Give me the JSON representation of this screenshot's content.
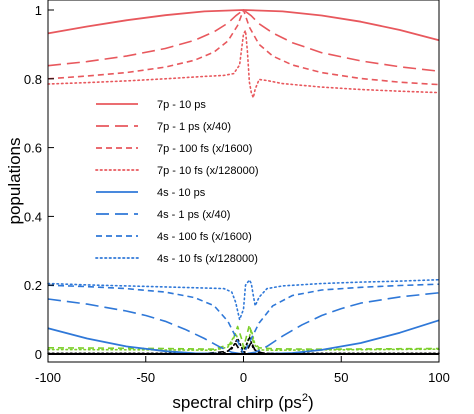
{
  "chart_data": {
    "type": "line",
    "title": "",
    "xlabel": "spectral chirp (ps",
    "xlabel_sup": "2",
    "xlabel_close": ")",
    "ylabel": "populations",
    "xlim": [
      -100,
      100
    ],
    "ylim": [
      0,
      1
    ],
    "xticks": [
      -100,
      -50,
      0,
      50,
      100
    ],
    "xtick_labels": [
      "-100",
      "-50",
      "0",
      "50",
      "100"
    ],
    "yticks": [
      0,
      0.2,
      0.4,
      0.6,
      0.8,
      1
    ],
    "ytick_labels": [
      "0",
      "0.2",
      "0.4",
      "0.6",
      "0.8",
      "1"
    ],
    "grid": false,
    "legend_position": "left",
    "colors": {
      "red": "#e8585d",
      "blue": "#2f78d8",
      "green": "#7ccf2a",
      "black": "#000000"
    },
    "series": [
      {
        "name": "7p - 10 ps",
        "color": "#e8585d",
        "style": "solid",
        "x": [
          -100,
          -80,
          -60,
          -40,
          -20,
          0,
          20,
          40,
          60,
          80,
          100
        ],
        "values": [
          0.932,
          0.952,
          0.97,
          0.985,
          0.996,
          1.0,
          0.996,
          0.984,
          0.966,
          0.942,
          0.912
        ]
      },
      {
        "name": "7p - 1 ps (x/40)",
        "color": "#e8585d",
        "style": "longdash",
        "x": [
          -100,
          -80,
          -60,
          -40,
          -25,
          -15,
          -8,
          -4,
          0,
          4,
          8,
          15,
          25,
          40,
          60,
          80,
          100
        ],
        "values": [
          0.838,
          0.85,
          0.866,
          0.888,
          0.912,
          0.937,
          0.962,
          0.983,
          1.0,
          0.983,
          0.96,
          0.933,
          0.905,
          0.876,
          0.852,
          0.835,
          0.822
        ]
      },
      {
        "name": "7p - 100 fs (x/1600)",
        "color": "#e8585d",
        "style": "dash",
        "x": [
          -100,
          -80,
          -60,
          -40,
          -25,
          -15,
          -8,
          -3,
          0,
          3,
          8,
          15,
          25,
          40,
          60,
          80,
          100
        ],
        "values": [
          0.8,
          0.808,
          0.818,
          0.834,
          0.854,
          0.878,
          0.91,
          0.955,
          1.0,
          0.95,
          0.9,
          0.866,
          0.84,
          0.818,
          0.801,
          0.79,
          0.783
        ]
      },
      {
        "name": "7p - 10 fs (x/128000)",
        "color": "#e8585d",
        "style": "dot",
        "x": [
          -100,
          -80,
          -60,
          -40,
          -20,
          -10,
          -5,
          -2,
          0,
          1,
          2,
          3,
          4,
          5,
          6,
          8,
          12,
          20,
          40,
          60,
          80,
          100
        ],
        "values": [
          0.785,
          0.789,
          0.794,
          0.8,
          0.807,
          0.81,
          0.815,
          0.84,
          0.93,
          0.94,
          0.88,
          0.79,
          0.76,
          0.745,
          0.77,
          0.798,
          0.795,
          0.786,
          0.776,
          0.769,
          0.764,
          0.76
        ]
      },
      {
        "name": "4s - 10 ps",
        "color": "#2f78d8",
        "style": "solid",
        "x": [
          -100,
          -80,
          -60,
          -40,
          -25,
          -15,
          -8,
          0,
          8,
          15,
          25,
          40,
          60,
          80,
          100
        ],
        "values": [
          0.075,
          0.045,
          0.022,
          0.008,
          0.002,
          0.001,
          0.0,
          0.0,
          0.0,
          0.001,
          0.003,
          0.012,
          0.032,
          0.062,
          0.098
        ]
      },
      {
        "name": "4s - 1 ps (x/40)",
        "color": "#2f78d8",
        "style": "longdash",
        "x": [
          -100,
          -80,
          -60,
          -50,
          -40,
          -30,
          -20,
          -12,
          -6,
          0,
          6,
          12,
          20,
          30,
          40,
          50,
          60,
          80,
          100
        ],
        "values": [
          0.16,
          0.145,
          0.125,
          0.112,
          0.095,
          0.072,
          0.045,
          0.02,
          0.005,
          0.0,
          0.005,
          0.022,
          0.052,
          0.085,
          0.112,
          0.132,
          0.148,
          0.166,
          0.178
        ]
      },
      {
        "name": "4s - 100 fs (x/1600)",
        "color": "#2f78d8",
        "style": "dash",
        "x": [
          -100,
          -80,
          -60,
          -40,
          -25,
          -15,
          -8,
          -4,
          0,
          4,
          8,
          15,
          25,
          40,
          60,
          80,
          100
        ],
        "values": [
          0.2,
          0.196,
          0.19,
          0.18,
          0.164,
          0.14,
          0.095,
          0.05,
          0.0,
          0.045,
          0.09,
          0.14,
          0.17,
          0.186,
          0.194,
          0.199,
          0.203
        ]
      },
      {
        "name": "4s - 10 fs (x/128000)",
        "color": "#2f78d8",
        "style": "dot",
        "x": [
          -100,
          -80,
          -60,
          -40,
          -20,
          -10,
          -6,
          -4,
          -2,
          0,
          1,
          3,
          4,
          5,
          6,
          8,
          12,
          20,
          40,
          60,
          80,
          100
        ],
        "values": [
          0.205,
          0.201,
          0.198,
          0.195,
          0.192,
          0.19,
          0.18,
          0.15,
          0.1,
          0.13,
          0.2,
          0.215,
          0.205,
          0.17,
          0.14,
          0.165,
          0.19,
          0.198,
          0.205,
          0.209,
          0.212,
          0.216
        ]
      }
    ],
    "unlabeled_series": [
      {
        "color": "#7ccf2a",
        "style": "dash",
        "x": [
          -100,
          -40,
          -15,
          -6,
          -3,
          -1,
          0,
          1,
          3,
          5,
          8,
          15,
          40,
          100
        ],
        "values": [
          0.018,
          0.016,
          0.014,
          0.03,
          0.08,
          0.045,
          0.02,
          0.04,
          0.085,
          0.035,
          0.018,
          0.015,
          0.014,
          0.016
        ]
      },
      {
        "color": "#7ccf2a",
        "style": "dot",
        "x": [
          -100,
          -40,
          -15,
          -8,
          -4,
          -2,
          0,
          2,
          4,
          6,
          8,
          15,
          40,
          100
        ],
        "values": [
          0.013,
          0.012,
          0.011,
          0.02,
          0.06,
          0.03,
          0.012,
          0.03,
          0.07,
          0.025,
          0.012,
          0.011,
          0.012,
          0.014
        ]
      },
      {
        "color": "#000000",
        "style": "dot",
        "x": [
          -100,
          -20,
          -10,
          -6,
          -3,
          -1,
          0,
          1,
          3,
          5,
          8,
          12,
          20,
          100
        ],
        "values": [
          0.002,
          0.002,
          0.003,
          0.015,
          0.045,
          0.02,
          0.004,
          0.02,
          0.05,
          0.015,
          0.004,
          0.002,
          0.002,
          0.002
        ]
      },
      {
        "color": "#000000",
        "style": "dash",
        "x": [
          -100,
          -20,
          -8,
          -4,
          -2,
          0,
          2,
          4,
          6,
          10,
          20,
          100
        ],
        "values": [
          0.001,
          0.001,
          0.008,
          0.03,
          0.012,
          0.002,
          0.012,
          0.035,
          0.01,
          0.002,
          0.001,
          0.001
        ]
      }
    ]
  }
}
